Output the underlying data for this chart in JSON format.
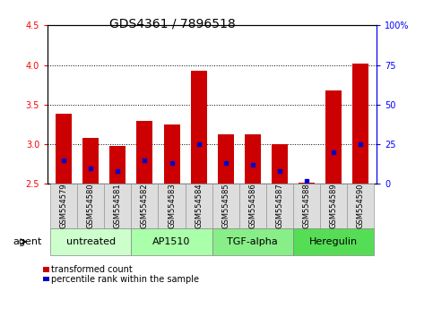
{
  "title": "GDS4361 / 7896518",
  "samples": [
    "GSM554579",
    "GSM554580",
    "GSM554581",
    "GSM554582",
    "GSM554583",
    "GSM554584",
    "GSM554585",
    "GSM554586",
    "GSM554587",
    "GSM554588",
    "GSM554589",
    "GSM554590"
  ],
  "transformed_count": [
    3.38,
    3.08,
    2.98,
    3.3,
    3.25,
    3.93,
    3.12,
    3.12,
    3.0,
    2.51,
    3.68,
    4.02
  ],
  "percentile_rank": [
    15,
    10,
    8,
    15,
    13,
    25,
    13,
    12,
    8,
    2,
    20,
    25
  ],
  "ylim": [
    2.5,
    4.5
  ],
  "y2lim": [
    0,
    100
  ],
  "yticks": [
    2.5,
    3.0,
    3.5,
    4.0,
    4.5
  ],
  "y2ticks": [
    0,
    25,
    50,
    75,
    100
  ],
  "y2ticklabels": [
    "0",
    "25",
    "50",
    "75",
    "100%"
  ],
  "groups": [
    {
      "label": "untreated",
      "start": 0,
      "end": 2,
      "color": "#ccffcc"
    },
    {
      "label": "AP1510",
      "start": 3,
      "end": 5,
      "color": "#aaffaa"
    },
    {
      "label": "TGF-alpha",
      "start": 6,
      "end": 8,
      "color": "#88ee88"
    },
    {
      "label": "Heregulin",
      "start": 9,
      "end": 11,
      "color": "#55dd55"
    }
  ],
  "bar_color": "#cc0000",
  "blue_marker_color": "#0000cc",
  "baseline": 2.5,
  "bar_width": 0.6,
  "agent_label": "agent",
  "legend_items": [
    {
      "color": "#cc0000",
      "label": "transformed count"
    },
    {
      "color": "#0000cc",
      "label": "percentile rank within the sample"
    }
  ],
  "background_color": "#ffffff",
  "plot_bg_color": "#ffffff",
  "title_fontsize": 10,
  "tick_fontsize": 7,
  "label_fontsize": 8
}
